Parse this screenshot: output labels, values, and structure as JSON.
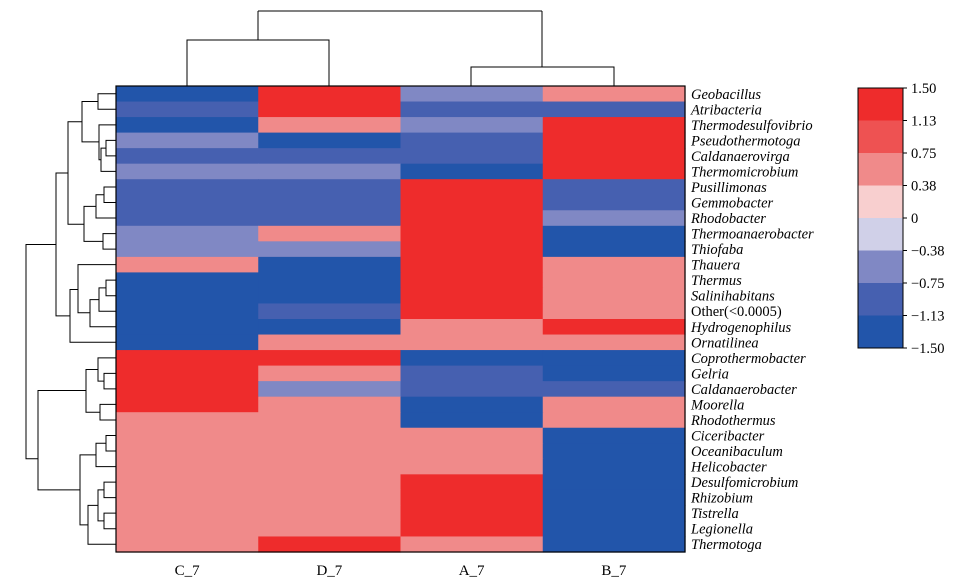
{
  "chart_data": {
    "type": "heatmap",
    "columns": [
      "C_7",
      "D_7",
      "A_7",
      "B_7"
    ],
    "rows": [
      {
        "label": "Geobacillus",
        "values": [
          -1.5,
          1.5,
          -0.38,
          0.38
        ]
      },
      {
        "label": "Atribacteria",
        "values": [
          -0.75,
          1.5,
          -0.75,
          -0.75
        ]
      },
      {
        "label": "Thermodesulfovibrio",
        "values": [
          -1.5,
          0.75,
          -0.38,
          1.13
        ]
      },
      {
        "label": "Pseudothermotoga",
        "values": [
          -0.38,
          -1.13,
          -0.75,
          1.5
        ]
      },
      {
        "label": "Caldanaerovirga",
        "values": [
          -0.75,
          -0.75,
          -0.75,
          1.5
        ]
      },
      {
        "label": "Thermomicrobium",
        "values": [
          -0.38,
          -0.38,
          -1.13,
          1.5
        ]
      },
      {
        "label": "Pusillimonas",
        "values": [
          -0.75,
          -0.75,
          1.5,
          -0.75
        ]
      },
      {
        "label": "Gemmobacter",
        "values": [
          -0.75,
          -0.75,
          1.5,
          -0.75
        ]
      },
      {
        "label": "Rhodobacter",
        "values": [
          -0.75,
          -0.75,
          1.5,
          -0.38
        ]
      },
      {
        "label": "Thermoanaerobacter",
        "values": [
          -0.38,
          0.38,
          1.5,
          -1.13
        ]
      },
      {
        "label": "Thiofaba",
        "values": [
          -0.38,
          -0.38,
          1.5,
          -1.13
        ]
      },
      {
        "label": "Thauera",
        "values": [
          0.38,
          -1.5,
          1.13,
          0.38
        ]
      },
      {
        "label": "Thermus",
        "values": [
          -1.13,
          -1.13,
          1.13,
          0.75
        ]
      },
      {
        "label": "Salinihabitans",
        "values": [
          -1.13,
          -1.13,
          1.5,
          0.75
        ]
      },
      {
        "label": "Other(<0.0005)",
        "values": [
          -1.13,
          -0.75,
          1.5,
          0.38
        ]
      },
      {
        "label": "Hydrogenophilus",
        "values": [
          -1.13,
          -1.13,
          0.75,
          1.13
        ]
      },
      {
        "label": "Ornatilinea",
        "values": [
          -1.5,
          0.38,
          0.75,
          0.75
        ]
      },
      {
        "label": "Coprothermobacter",
        "values": [
          1.13,
          1.13,
          -1.13,
          -1.13
        ]
      },
      {
        "label": "Gelria",
        "values": [
          1.13,
          0.75,
          -0.75,
          -1.5
        ]
      },
      {
        "label": "Caldanaerobacter",
        "values": [
          1.5,
          -0.38,
          -0.75,
          -0.75
        ]
      },
      {
        "label": "Moorella",
        "values": [
          1.13,
          0.75,
          -1.5,
          0.38
        ]
      },
      {
        "label": "Rhodothermus",
        "values": [
          0.75,
          0.75,
          -1.5,
          0.75
        ]
      },
      {
        "label": "Ciceribacter",
        "values": [
          0.75,
          0.75,
          0.38,
          -1.5
        ]
      },
      {
        "label": "Oceanibaculum",
        "values": [
          0.75,
          0.75,
          0.38,
          -1.5
        ]
      },
      {
        "label": "Helicobacter",
        "values": [
          0.75,
          0.75,
          0.75,
          -1.5
        ]
      },
      {
        "label": "Desulfomicrobium",
        "values": [
          0.38,
          0.38,
          1.13,
          -1.5
        ]
      },
      {
        "label": "Rhizobium",
        "values": [
          0.38,
          0.38,
          1.13,
          -1.5
        ]
      },
      {
        "label": "Tistrella",
        "values": [
          0.38,
          0.38,
          1.13,
          -1.5
        ]
      },
      {
        "label": "Legionella",
        "values": [
          0.38,
          0.38,
          1.13,
          -1.5
        ]
      },
      {
        "label": "Thermotoga",
        "values": [
          0.38,
          1.5,
          0.38,
          -1.5
        ]
      }
    ],
    "scale": {
      "min": -1.5,
      "max": 1.5,
      "ticks": [
        "1.50",
        "1.13",
        "0.75",
        "0.38",
        "0",
        "−0.38",
        "−0.75",
        "−1.13",
        "−1.50"
      ],
      "colors": [
        "#ee2c2c",
        "#ee5252",
        "#f08a8a",
        "#f8cfcf",
        "#d0d0e8",
        "#8088c4",
        "#4660b0",
        "#2255aa"
      ]
    },
    "column_dendrogram": true,
    "row_dendrogram": true
  }
}
